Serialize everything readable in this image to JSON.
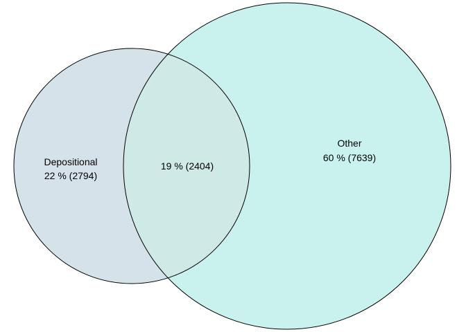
{
  "venn": {
    "colors": {
      "background": "#ffffff",
      "left_fill": "#d5e2ea",
      "right_fill": "#c9f2ee",
      "overlap_fill": "#cfe9e7",
      "stroke": "#000000"
    },
    "left": {
      "name": "Depositional",
      "value_label": "22 % (2794)",
      "percent": 22,
      "count": 2794
    },
    "overlap": {
      "value_label": "19 % (2404)",
      "percent": 19,
      "count": 2404
    },
    "right": {
      "name": "Other",
      "value_label": "60 % (7639)",
      "percent": 60,
      "count": 7639
    }
  }
}
